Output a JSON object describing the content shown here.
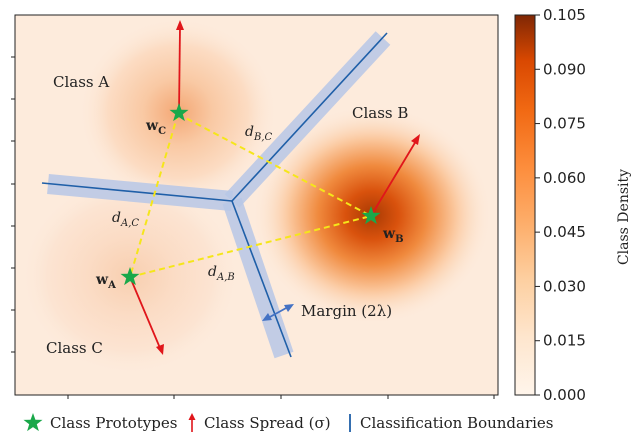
{
  "classes": [
    {
      "key": "A",
      "label": "Class A",
      "prototype": "w",
      "sub": "C"
    },
    {
      "key": "B",
      "label": "Class B",
      "prototype": "w",
      "sub": "B"
    },
    {
      "key": "C",
      "label": "Class C",
      "prototype": "w",
      "sub": "A"
    }
  ],
  "distances": [
    {
      "main": "d",
      "sub": "B,C"
    },
    {
      "main": "d",
      "sub": "A,C"
    },
    {
      "main": "d",
      "sub": "A,B"
    }
  ],
  "margin_label": "Margin (2λ)",
  "colorbar": {
    "title": "Class Density",
    "ticks": [
      "0.105",
      "0.090",
      "0.075",
      "0.060",
      "0.045",
      "0.030",
      "0.015",
      "0.000"
    ]
  },
  "legend": {
    "prototypes": "Class Prototypes",
    "spread": "Class Spread (σ)",
    "boundaries": "Classification Boundaries"
  },
  "colors": {
    "background": "#fdebdc",
    "density_high": "#7f2704",
    "prototype": "#1aa84a",
    "spread_arrow": "#e0161b",
    "boundary": "#1f5fa8",
    "margin_band": "#b7c7e6",
    "distance_line": "#f5e61a",
    "margin_arrow": "#4472c4"
  }
}
